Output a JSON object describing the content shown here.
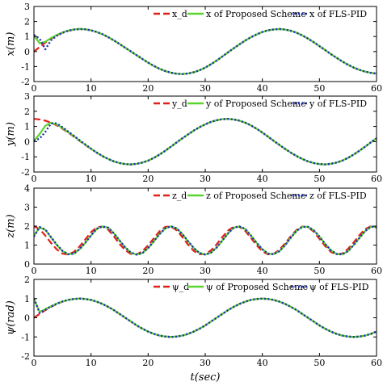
{
  "chart_data": [
    {
      "type": "line",
      "ylabel": "x(m)",
      "xlabel": "",
      "xlim": [
        0,
        60
      ],
      "ylim": [
        -2,
        3
      ],
      "xticks": [
        0,
        10,
        20,
        30,
        40,
        50,
        60
      ],
      "yticks": [
        -2,
        -1,
        0,
        1,
        2,
        3
      ],
      "grid": false,
      "legend": "top-right",
      "x": [
        0,
        1,
        2,
        3,
        4,
        5,
        6,
        7,
        8,
        9,
        10,
        11,
        12,
        13,
        14,
        15,
        16,
        17,
        18,
        19,
        20,
        21,
        22,
        23,
        24,
        25,
        26,
        27,
        28,
        29,
        30,
        31,
        32,
        33,
        34,
        35,
        36,
        37,
        38,
        39,
        40,
        41,
        42,
        43,
        44,
        45,
        46,
        47,
        48,
        49,
        50,
        51,
        52,
        53,
        54,
        55,
        56,
        57,
        58,
        59,
        60
      ],
      "series": [
        {
          "name": "x_d",
          "color": "#e0201b",
          "dash": "8,4",
          "values": [
            0,
            0.3,
            0.6,
            0.85,
            1.07,
            1.25,
            1.38,
            1.46,
            1.5,
            1.48,
            1.41,
            1.3,
            1.15,
            0.96,
            0.74,
            0.5,
            0.25,
            0,
            -0.25,
            -0.5,
            -0.74,
            -0.96,
            -1.15,
            -1.3,
            -1.41,
            -1.48,
            -1.5,
            -1.46,
            -1.38,
            -1.25,
            -1.07,
            -0.85,
            -0.6,
            -0.33,
            -0.05,
            0.22,
            0.48,
            0.73,
            0.95,
            1.14,
            1.3,
            1.41,
            1.47,
            1.5,
            1.46,
            1.38,
            1.25,
            1.07,
            0.86,
            0.62,
            0.36,
            0.1,
            -0.17,
            -0.42,
            -0.66,
            -0.88,
            -1.07,
            -1.22,
            -1.34,
            -1.42,
            -1.47
          ]
        },
        {
          "name": "x of Proposed Scheme",
          "color": "#5bd330",
          "dash": "",
          "values": [
            1.05,
            0.55,
            0.65,
            0.9,
            1.1,
            1.27,
            1.4,
            1.47,
            1.5,
            1.48,
            1.41,
            1.3,
            1.15,
            0.96,
            0.74,
            0.5,
            0.25,
            0,
            -0.25,
            -0.5,
            -0.74,
            -0.96,
            -1.15,
            -1.3,
            -1.41,
            -1.48,
            -1.5,
            -1.46,
            -1.38,
            -1.25,
            -1.07,
            -0.85,
            -0.6,
            -0.33,
            -0.05,
            0.22,
            0.48,
            0.73,
            0.95,
            1.14,
            1.3,
            1.41,
            1.47,
            1.5,
            1.46,
            1.38,
            1.25,
            1.07,
            0.86,
            0.62,
            0.36,
            0.1,
            -0.17,
            -0.42,
            -0.66,
            -0.88,
            -1.07,
            -1.22,
            -1.34,
            -1.42,
            -1.47
          ]
        },
        {
          "name": "x of FLS-PID",
          "color": "#1f2fb3",
          "dash": "2,2.5",
          "values": [
            1.1,
            0.85,
            0.15,
            0.75,
            1.05,
            1.25,
            1.38,
            1.46,
            1.5,
            1.48,
            1.41,
            1.3,
            1.15,
            0.96,
            0.74,
            0.5,
            0.25,
            0,
            -0.25,
            -0.5,
            -0.74,
            -0.96,
            -1.15,
            -1.3,
            -1.41,
            -1.48,
            -1.5,
            -1.46,
            -1.38,
            -1.25,
            -1.07,
            -0.85,
            -0.6,
            -0.33,
            -0.05,
            0.22,
            0.48,
            0.73,
            0.95,
            1.14,
            1.3,
            1.41,
            1.47,
            1.5,
            1.46,
            1.38,
            1.25,
            1.07,
            0.86,
            0.62,
            0.36,
            0.1,
            -0.17,
            -0.42,
            -0.66,
            -0.88,
            -1.07,
            -1.22,
            -1.34,
            -1.42,
            -1.47
          ]
        }
      ]
    },
    {
      "type": "line",
      "ylabel": "y(m)",
      "xlabel": "",
      "xlim": [
        0,
        60
      ],
      "ylim": [
        -2,
        3
      ],
      "xticks": [
        0,
        10,
        20,
        30,
        40,
        50,
        60
      ],
      "yticks": [
        -2,
        -1,
        0,
        1,
        2,
        3
      ],
      "grid": false,
      "legend": "top-right",
      "x": [
        0,
        1,
        2,
        3,
        4,
        5,
        6,
        7,
        8,
        9,
        10,
        11,
        12,
        13,
        14,
        15,
        16,
        17,
        18,
        19,
        20,
        21,
        22,
        23,
        24,
        25,
        26,
        27,
        28,
        29,
        30,
        31,
        32,
        33,
        34,
        35,
        36,
        37,
        38,
        39,
        40,
        41,
        42,
        43,
        44,
        45,
        46,
        47,
        48,
        49,
        50,
        51,
        52,
        53,
        54,
        55,
        56,
        57,
        58,
        59,
        60
      ],
      "series": [
        {
          "name": "y_d",
          "color": "#e0201b",
          "dash": "8,4",
          "values": [
            1.5,
            1.46,
            1.38,
            1.25,
            1.07,
            0.85,
            0.6,
            0.33,
            0.05,
            -0.22,
            -0.48,
            -0.73,
            -0.95,
            -1.14,
            -1.3,
            -1.41,
            -1.48,
            -1.5,
            -1.46,
            -1.38,
            -1.25,
            -1.07,
            -0.85,
            -0.6,
            -0.33,
            -0.05,
            0.22,
            0.48,
            0.73,
            0.95,
            1.14,
            1.3,
            1.41,
            1.48,
            1.5,
            1.46,
            1.38,
            1.25,
            1.07,
            0.85,
            0.6,
            0.33,
            0.05,
            -0.22,
            -0.48,
            -0.73,
            -0.95,
            -1.14,
            -1.3,
            -1.41,
            -1.48,
            -1.5,
            -1.46,
            -1.38,
            -1.25,
            -1.07,
            -0.85,
            -0.6,
            -0.33,
            -0.05,
            0.22
          ]
        },
        {
          "name": "y of Proposed Scheme",
          "color": "#5bd330",
          "dash": "",
          "values": [
            0.05,
            0.5,
            1.05,
            1.25,
            1.12,
            0.9,
            0.63,
            0.36,
            0.07,
            -0.2,
            -0.47,
            -0.72,
            -0.95,
            -1.14,
            -1.3,
            -1.41,
            -1.48,
            -1.5,
            -1.46,
            -1.38,
            -1.25,
            -1.07,
            -0.85,
            -0.6,
            -0.33,
            -0.05,
            0.22,
            0.48,
            0.73,
            0.95,
            1.14,
            1.3,
            1.41,
            1.48,
            1.5,
            1.46,
            1.38,
            1.25,
            1.07,
            0.85,
            0.6,
            0.33,
            0.05,
            -0.22,
            -0.48,
            -0.73,
            -0.95,
            -1.14,
            -1.3,
            -1.41,
            -1.48,
            -1.5,
            -1.46,
            -1.38,
            -1.25,
            -1.07,
            -0.85,
            -0.6,
            -0.33,
            -0.05,
            0.22
          ]
        },
        {
          "name": "y of FLS-PID",
          "color": "#1f2fb3",
          "dash": "2,2.5",
          "values": [
            0.05,
            0.2,
            0.65,
            1.2,
            1.2,
            0.95,
            0.66,
            0.38,
            0.09,
            -0.19,
            -0.46,
            -0.72,
            -0.95,
            -1.14,
            -1.3,
            -1.41,
            -1.48,
            -1.5,
            -1.46,
            -1.38,
            -1.25,
            -1.07,
            -0.85,
            -0.6,
            -0.33,
            -0.05,
            0.22,
            0.48,
            0.73,
            0.95,
            1.14,
            1.3,
            1.41,
            1.48,
            1.5,
            1.46,
            1.38,
            1.25,
            1.07,
            0.85,
            0.6,
            0.33,
            0.05,
            -0.22,
            -0.48,
            -0.73,
            -0.95,
            -1.14,
            -1.3,
            -1.41,
            -1.48,
            -1.5,
            -1.46,
            -1.38,
            -1.25,
            -1.07,
            -0.85,
            -0.6,
            -0.33,
            -0.05,
            0.22
          ]
        }
      ]
    },
    {
      "type": "line",
      "ylabel": "z(m)",
      "xlabel": "",
      "xlim": [
        0,
        60
      ],
      "ylim": [
        0,
        4
      ],
      "xticks": [
        0,
        10,
        20,
        30,
        40,
        50,
        60
      ],
      "yticks": [
        0,
        1,
        2,
        3,
        4
      ],
      "grid": false,
      "legend": "top-right",
      "x": [
        0,
        1,
        2,
        3,
        4,
        5,
        6,
        7,
        8,
        9,
        10,
        11,
        12,
        13,
        14,
        15,
        16,
        17,
        18,
        19,
        20,
        21,
        22,
        23,
        24,
        25,
        26,
        27,
        28,
        29,
        30,
        31,
        32,
        33,
        34,
        35,
        36,
        37,
        38,
        39,
        40,
        41,
        42,
        43,
        44,
        45,
        46,
        47,
        48,
        49,
        50,
        51,
        52,
        53,
        54,
        55,
        56,
        57,
        58,
        59,
        60
      ],
      "series": [
        {
          "name": "z_d",
          "color": "#e0201b",
          "dash": "8,4",
          "values": [
            1.99,
            1.84,
            1.5,
            1.11,
            0.77,
            0.55,
            0.5,
            0.64,
            0.93,
            1.3,
            1.68,
            1.93,
            1.98,
            1.81,
            1.46,
            1.06,
            0.73,
            0.53,
            0.51,
            0.68,
            0.99,
            1.36,
            1.73,
            1.96,
            1.98,
            1.78,
            1.42,
            1.02,
            0.69,
            0.52,
            0.52,
            0.72,
            1.04,
            1.42,
            1.77,
            1.97,
            1.96,
            1.75,
            1.38,
            0.99,
            0.67,
            0.51,
            0.54,
            0.76,
            1.09,
            1.47,
            1.8,
            1.98,
            1.94,
            1.71,
            1.33,
            0.95,
            0.64,
            0.51,
            0.56,
            0.8,
            1.14,
            1.52,
            1.84,
            1.99,
            1.93
          ]
        },
        {
          "name": "z of Proposed Scheme",
          "color": "#5bd330",
          "dash": "",
          "values": [
            1.5,
            1.93,
            1.8,
            1.4,
            1.0,
            0.68,
            0.52,
            0.55,
            0.78,
            1.12,
            1.5,
            1.85,
            1.98,
            1.92,
            1.62,
            1.24,
            0.87,
            0.6,
            0.5,
            0.58,
            0.84,
            1.2,
            1.58,
            1.88,
            1.99,
            1.88,
            1.58,
            1.2,
            0.84,
            0.58,
            0.5,
            0.6,
            0.87,
            1.24,
            1.62,
            1.92,
            1.98,
            1.85,
            1.5,
            1.12,
            0.78,
            0.55,
            0.52,
            0.68,
            1.0,
            1.4,
            1.75,
            1.96,
            1.96,
            1.78,
            1.45,
            1.06,
            0.73,
            0.53,
            0.51,
            0.68,
            1.0,
            1.38,
            1.74,
            1.96,
            1.97
          ]
        },
        {
          "name": "z of FLS-PID",
          "color": "#1f2fb3",
          "dash": "2,2.5",
          "values": [
            1.45,
            1.95,
            1.82,
            1.42,
            1.02,
            0.7,
            0.52,
            0.55,
            0.79,
            1.13,
            1.51,
            1.86,
            1.98,
            1.92,
            1.62,
            1.24,
            0.87,
            0.6,
            0.5,
            0.58,
            0.84,
            1.2,
            1.58,
            1.88,
            1.99,
            1.88,
            1.58,
            1.2,
            0.84,
            0.58,
            0.5,
            0.6,
            0.87,
            1.24,
            1.62,
            1.92,
            1.98,
            1.85,
            1.5,
            1.12,
            0.78,
            0.55,
            0.52,
            0.68,
            1.0,
            1.4,
            1.75,
            1.96,
            1.96,
            1.78,
            1.45,
            1.06,
            0.73,
            0.53,
            0.51,
            0.68,
            1.0,
            1.38,
            1.74,
            1.96,
            1.97
          ]
        }
      ]
    },
    {
      "type": "line",
      "ylabel": "ψ(rad)",
      "xlabel": "t(sec)",
      "xlim": [
        0,
        60
      ],
      "ylim": [
        -2,
        2
      ],
      "xticks": [
        0,
        10,
        20,
        30,
        40,
        50,
        60
      ],
      "yticks": [
        -2,
        -1,
        0,
        1,
        2
      ],
      "grid": false,
      "legend": "top-right",
      "x": [
        0,
        1,
        2,
        3,
        4,
        5,
        6,
        7,
        8,
        9,
        10,
        11,
        12,
        13,
        14,
        15,
        16,
        17,
        18,
        19,
        20,
        21,
        22,
        23,
        24,
        25,
        26,
        27,
        28,
        29,
        30,
        31,
        32,
        33,
        34,
        35,
        36,
        37,
        38,
        39,
        40,
        41,
        42,
        43,
        44,
        45,
        46,
        47,
        48,
        49,
        50,
        51,
        52,
        53,
        54,
        55,
        56,
        57,
        58,
        59,
        60
      ],
      "series": [
        {
          "name": "ψ_d",
          "color": "#e0201b",
          "dash": "8,4",
          "values": [
            0,
            0.2,
            0.4,
            0.57,
            0.72,
            0.84,
            0.93,
            0.98,
            1.0,
            0.98,
            0.93,
            0.84,
            0.72,
            0.57,
            0.4,
            0.2,
            0,
            -0.2,
            -0.4,
            -0.57,
            -0.72,
            -0.84,
            -0.93,
            -0.98,
            -1.0,
            -0.98,
            -0.93,
            -0.84,
            -0.72,
            -0.57,
            -0.4,
            -0.2,
            0,
            0.2,
            0.4,
            0.57,
            0.72,
            0.84,
            0.93,
            0.98,
            1.0,
            0.98,
            0.93,
            0.84,
            0.72,
            0.57,
            0.4,
            0.2,
            0,
            -0.2,
            -0.4,
            -0.57,
            -0.72,
            -0.84,
            -0.93,
            -0.98,
            -1.0,
            -0.98,
            -0.93,
            -0.84,
            -0.72
          ]
        },
        {
          "name": "ψ of Proposed Scheme",
          "color": "#5bd330",
          "dash": "",
          "values": [
            1.0,
            0.3,
            0.45,
            0.6,
            0.74,
            0.85,
            0.93,
            0.98,
            1.0,
            0.98,
            0.93,
            0.84,
            0.72,
            0.57,
            0.4,
            0.2,
            0,
            -0.2,
            -0.4,
            -0.57,
            -0.72,
            -0.84,
            -0.93,
            -0.98,
            -1.0,
            -0.98,
            -0.93,
            -0.84,
            -0.72,
            -0.57,
            -0.4,
            -0.2,
            0,
            0.2,
            0.4,
            0.57,
            0.72,
            0.84,
            0.93,
            0.98,
            1.0,
            0.98,
            0.93,
            0.84,
            0.72,
            0.57,
            0.4,
            0.2,
            0,
            -0.2,
            -0.4,
            -0.57,
            -0.72,
            -0.84,
            -0.93,
            -0.98,
            -1.0,
            -0.98,
            -0.93,
            -0.84,
            -0.72
          ]
        },
        {
          "name": "ψ of FLS-PID",
          "color": "#1f2fb3",
          "dash": "2,2.5",
          "values": [
            1.0,
            0.25,
            0.42,
            0.59,
            0.73,
            0.85,
            0.93,
            0.98,
            1.0,
            0.98,
            0.93,
            0.84,
            0.72,
            0.57,
            0.4,
            0.2,
            0,
            -0.2,
            -0.4,
            -0.57,
            -0.72,
            -0.84,
            -0.93,
            -0.98,
            -1.0,
            -0.98,
            -0.93,
            -0.84,
            -0.72,
            -0.57,
            -0.4,
            -0.2,
            0,
            0.2,
            0.4,
            0.57,
            0.72,
            0.84,
            0.93,
            0.98,
            1.0,
            0.98,
            0.93,
            0.84,
            0.72,
            0.57,
            0.4,
            0.2,
            0,
            -0.2,
            -0.4,
            -0.57,
            -0.72,
            -0.84,
            -0.93,
            -0.98,
            -1.0,
            -0.98,
            -0.93,
            -0.84,
            -0.72
          ]
        }
      ]
    }
  ]
}
